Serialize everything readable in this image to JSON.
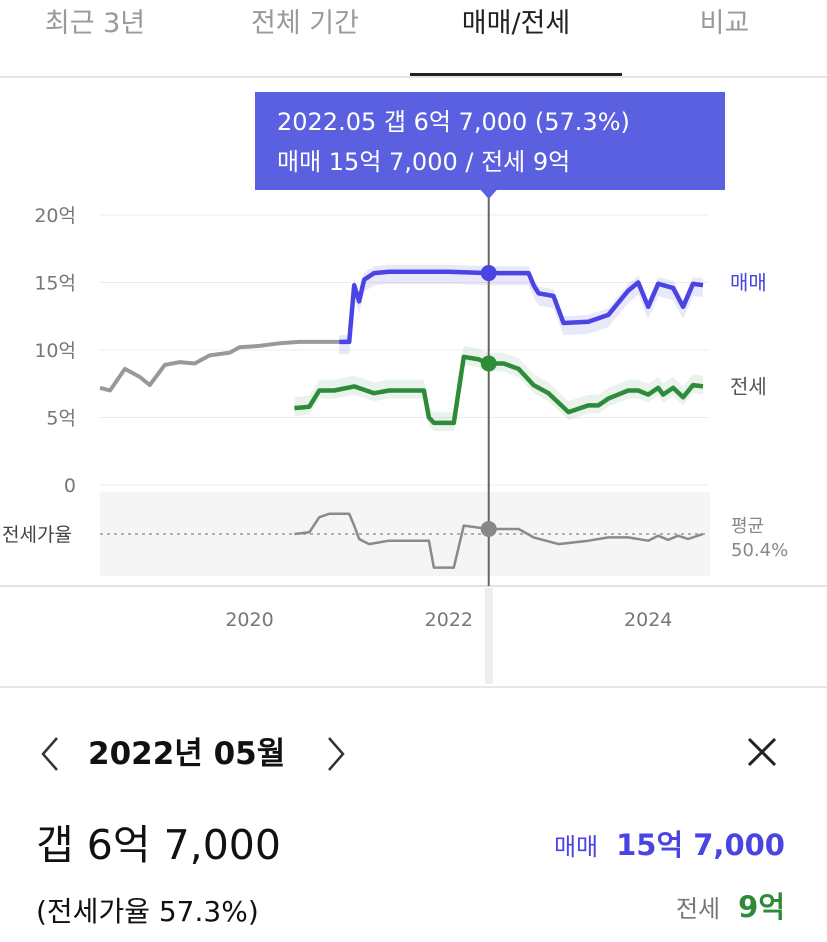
{
  "tabs": [
    {
      "label": "최근 3년",
      "active": false
    },
    {
      "label": "전체 기간",
      "active": false
    },
    {
      "label": "매매/전세",
      "active": true
    },
    {
      "label": "비교",
      "active": false
    }
  ],
  "tooltip": {
    "line1": "2022.05  갭 6억 7,000 (57.3%)",
    "line2": "매매 15억 7,000 / 전세 9억"
  },
  "colors": {
    "sale": "#4a44e2",
    "jeonse": "#2e8b3a",
    "ratio": "#888888",
    "tooltip_bg": "#5a60e0"
  },
  "chart_data": {
    "type": "line",
    "y_ticks": [
      "20억",
      "15억",
      "10억",
      "5억",
      "0"
    ],
    "y_range": [
      0,
      20
    ],
    "x_ticks": [
      "2020",
      "2022",
      "2024"
    ],
    "x_range": [
      2018.5,
      2024.6
    ],
    "selected_x": 2022.4,
    "series": [
      {
        "name": "매매",
        "color": "#4a44e2",
        "points": [
          [
            2020.9,
            10.6
          ],
          [
            2021.0,
            10.6
          ],
          [
            2021.05,
            14.8
          ],
          [
            2021.1,
            13.6
          ],
          [
            2021.15,
            15.2
          ],
          [
            2021.25,
            15.7
          ],
          [
            2021.4,
            15.8
          ],
          [
            2022.0,
            15.8
          ],
          [
            2022.4,
            15.7
          ],
          [
            2022.8,
            15.7
          ],
          [
            2022.85,
            14.8
          ],
          [
            2022.9,
            14.2
          ],
          [
            2023.05,
            14.0
          ],
          [
            2023.15,
            12.0
          ],
          [
            2023.4,
            12.1
          ],
          [
            2023.6,
            12.6
          ],
          [
            2023.8,
            14.4
          ],
          [
            2023.9,
            15.0
          ],
          [
            2024.0,
            13.2
          ],
          [
            2024.1,
            14.9
          ],
          [
            2024.25,
            14.6
          ],
          [
            2024.35,
            13.2
          ],
          [
            2024.45,
            14.9
          ],
          [
            2024.55,
            14.8
          ]
        ]
      },
      {
        "name": "매매_pre",
        "color": "#999999",
        "points": [
          [
            2018.5,
            7.2
          ],
          [
            2018.6,
            7.0
          ],
          [
            2018.75,
            8.6
          ],
          [
            2018.9,
            8.0
          ],
          [
            2019.0,
            7.4
          ],
          [
            2019.15,
            8.9
          ],
          [
            2019.3,
            9.1
          ],
          [
            2019.45,
            9.0
          ],
          [
            2019.6,
            9.6
          ],
          [
            2019.8,
            9.8
          ],
          [
            2019.9,
            10.2
          ],
          [
            2020.1,
            10.3
          ],
          [
            2020.3,
            10.5
          ],
          [
            2020.5,
            10.6
          ],
          [
            2020.9,
            10.6
          ]
        ]
      },
      {
        "name": "전세",
        "color": "#2e8b3a",
        "points": [
          [
            2020.45,
            5.7
          ],
          [
            2020.6,
            5.8
          ],
          [
            2020.7,
            7.0
          ],
          [
            2020.85,
            7.0
          ],
          [
            2021.05,
            7.3
          ],
          [
            2021.25,
            6.8
          ],
          [
            2021.4,
            7.0
          ],
          [
            2021.6,
            7.0
          ],
          [
            2021.75,
            7.0
          ],
          [
            2021.8,
            5.0
          ],
          [
            2021.85,
            4.6
          ],
          [
            2022.05,
            4.6
          ],
          [
            2022.15,
            9.5
          ],
          [
            2022.3,
            9.3
          ],
          [
            2022.4,
            9.0
          ],
          [
            2022.55,
            9.0
          ],
          [
            2022.7,
            8.6
          ],
          [
            2022.85,
            7.4
          ],
          [
            2023.0,
            6.8
          ],
          [
            2023.2,
            5.4
          ],
          [
            2023.4,
            5.9
          ],
          [
            2023.5,
            5.9
          ],
          [
            2023.6,
            6.4
          ],
          [
            2023.8,
            7.0
          ],
          [
            2023.9,
            7.0
          ],
          [
            2024.0,
            6.7
          ],
          [
            2024.1,
            7.2
          ],
          [
            2024.15,
            6.7
          ],
          [
            2024.25,
            7.2
          ],
          [
            2024.35,
            6.5
          ],
          [
            2024.45,
            7.4
          ],
          [
            2024.55,
            7.3
          ]
        ]
      }
    ],
    "ratio_series": {
      "name": "전세가율",
      "avg_label": "평균",
      "avg_value": "50.4%",
      "points": [
        [
          2020.45,
          0.5
        ],
        [
          2020.6,
          0.52
        ],
        [
          2020.7,
          0.7
        ],
        [
          2020.8,
          0.74
        ],
        [
          2021.0,
          0.74
        ],
        [
          2021.05,
          0.6
        ],
        [
          2021.1,
          0.44
        ],
        [
          2021.2,
          0.38
        ],
        [
          2021.4,
          0.42
        ],
        [
          2021.8,
          0.42
        ],
        [
          2021.85,
          0.1
        ],
        [
          2022.05,
          0.1
        ],
        [
          2022.15,
          0.6
        ],
        [
          2022.4,
          0.56
        ],
        [
          2022.7,
          0.56
        ],
        [
          2022.85,
          0.46
        ],
        [
          2023.1,
          0.38
        ],
        [
          2023.4,
          0.42
        ],
        [
          2023.6,
          0.46
        ],
        [
          2023.8,
          0.46
        ],
        [
          2024.0,
          0.42
        ],
        [
          2024.1,
          0.48
        ],
        [
          2024.2,
          0.43
        ],
        [
          2024.3,
          0.48
        ],
        [
          2024.4,
          0.44
        ],
        [
          2024.55,
          0.5
        ]
      ]
    },
    "series_labels": {
      "sale": "매매",
      "jeonse": "전세"
    }
  },
  "detail": {
    "month": "2022년 05월",
    "gap": "갭 6억 7,000",
    "ratio": "(전세가율 57.3%)",
    "sale_label": "매매",
    "sale_value": "15억 7,000",
    "jeonse_label": "전세",
    "jeonse_value": "9억"
  }
}
